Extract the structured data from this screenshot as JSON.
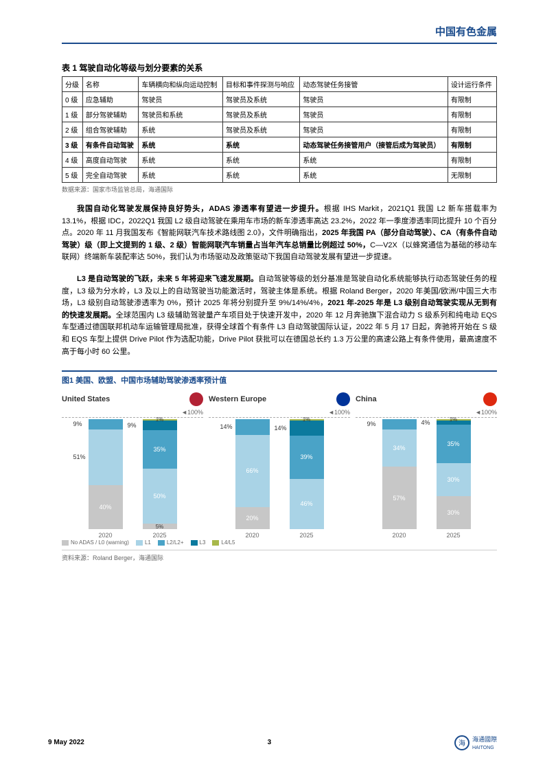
{
  "brand_header": "中国有色金属",
  "table1": {
    "title": "表 1  驾驶自动化等级与划分要素的关系",
    "headers": [
      "分级",
      "名称",
      "车辆横向和纵向运动控制",
      "目标和事件探测与响应",
      "动态驾驶任务接管",
      "设计运行条件"
    ],
    "rows": [
      [
        "0 级",
        "应急辅助",
        "驾驶员",
        "驾驶员及系统",
        "驾驶员",
        "有限制"
      ],
      [
        "1 级",
        "部分驾驶辅助",
        "驾驶员和系统",
        "驾驶员及系统",
        "驾驶员",
        "有限制"
      ],
      [
        "2 级",
        "组合驾驶辅助",
        "系统",
        "驾驶员及系统",
        "驾驶员",
        "有限制"
      ],
      [
        "3 级",
        "有条件自动驾驶",
        "系统",
        "系统",
        "动态驾驶任务接管用户（接管后成为驾驶员）",
        "有限制"
      ],
      [
        "4 级",
        "高度自动驾驶",
        "系统",
        "系统",
        "系统",
        "有限制"
      ],
      [
        "5 级",
        "完全自动驾驶",
        "系统",
        "系统",
        "系统",
        "无限制"
      ]
    ],
    "bold_row_index": 3,
    "source": "数据来源：国家市场监管总局，海通国际"
  },
  "paragraphs": [
    {
      "bold_lead": "我国自动化驾驶发展保持良好势头，ADAS 渗透率有望进一步提升。",
      "rest": "根据 IHS Markit，2021Q1 我国 L2 新车搭载率为 13.1%，根据 IDC，2022Q1 我国 L2 级自动驾驶在乘用车市场的新车渗透率高达 23.2%，2022 年一季度渗透率同比提升 10 个百分点。2020 年 11 月我国发布《智能网联汽车技术路线图 2.0》，文件明确指出，",
      "bold_mid": "2025 年我国 PA（部分自动驾驶）、CA（有条件自动驾驶）级（即上文提到的 1 级、2 级）智能网联汽车销量占当年汽车总销量比例超过 50%，",
      "tail": "C—V2X（以蜂窝通信为基础的移动车联网）终端新车装配率达 50%，我们认为市场驱动及政策驱动下我国自动驾驶发展有望进一步提速。"
    },
    {
      "bold_lead": "L3 是自动驾驶的飞跃，未来 5 年将迎来飞速发展期。",
      "rest": "自动驾驶等级的划分基准是驾驶自动化系统能够执行动态驾驶任务的程度，L3 级为分水岭，L3 及以上的自动驾驶当功能激活时，驾驶主体是系统。根据 Roland Berger，2020 年美国/欧洲/中国三大市场，L3 级别自动驾驶渗透率为 0%，预计 2025 年将分别提升至 9%/14%/4%，",
      "bold_mid": "2021 年-2025 年是 L3 级别自动驾驶实现从无到有的快速发展期。",
      "tail": "全球范围内 L3 级辅助驾驶量产车项目处于快速开发中，2020 年 12 月奔驰旗下混合动力 S 级系列和纯电动 EQS 车型通过德国联邦机动车运输管理局批准，获得全球首个有条件 L3 自动驾驶国际认证，2022 年 5 月 17 日起，奔驰将开始在 S 级和 EQS 车型上提供 Drive Pilot 作为选配功能，Drive Pilot 获批可以在德国总长约 1.3 万公里的高速公路上有条件使用，最高速度不高于每小时 60 公里。"
    }
  ],
  "chart": {
    "title": "图1  美国、欧盟、中国市场辅助驾驶渗透率预计值",
    "ref_label": "100%",
    "panels": [
      {
        "name": "United States",
        "flag_colors": [
          "#b22234",
          "#ffffff",
          "#3c3b6e"
        ],
        "bars": [
          {
            "year": "2020",
            "segments": [
              {
                "label": "40%",
                "value": 40,
                "color": "#c7c7c7",
                "side": false
              },
              {
                "label": "51%",
                "value": 51,
                "color": "#a9d3e6",
                "side": true
              },
              {
                "label": "9%",
                "value": 9,
                "color": "#4aa3c7",
                "side": true
              }
            ]
          },
          {
            "year": "2025",
            "segments": [
              {
                "label": "5%",
                "value": 5,
                "color": "#c7c7c7",
                "side": false
              },
              {
                "label": "50%",
                "value": 50,
                "color": "#a9d3e6",
                "side": false
              },
              {
                "label": "35%",
                "value": 35,
                "color": "#4aa3c7",
                "side": false
              },
              {
                "label": "9%",
                "value": 9,
                "color": "#0b7a9e",
                "side": true
              },
              {
                "label": "1%",
                "value": 1,
                "color": "#a8b84a",
                "side": false
              }
            ]
          }
        ]
      },
      {
        "name": "Western Europe",
        "flag_colors": [
          "#003399",
          "#ffcc00"
        ],
        "bars": [
          {
            "year": "2020",
            "segments": [
              {
                "label": "20%",
                "value": 20,
                "color": "#c7c7c7",
                "side": false
              },
              {
                "label": "66%",
                "value": 66,
                "color": "#a9d3e6",
                "side": false
              },
              {
                "label": "14%",
                "value": 14,
                "color": "#4aa3c7",
                "side": true
              }
            ]
          },
          {
            "year": "2025",
            "segments": [
              {
                "label": "46%",
                "value": 46,
                "color": "#a9d3e6",
                "side": false
              },
              {
                "label": "39%",
                "value": 39,
                "color": "#4aa3c7",
                "side": false
              },
              {
                "label": "14%",
                "value": 14,
                "color": "#0b7a9e",
                "side": true
              },
              {
                "label": "1%",
                "value": 1,
                "color": "#a8b84a",
                "side": false
              }
            ]
          }
        ]
      },
      {
        "name": "China",
        "flag_colors": [
          "#de2910",
          "#ffde00"
        ],
        "bars": [
          {
            "year": "2020",
            "segments": [
              {
                "label": "57%",
                "value": 57,
                "color": "#c7c7c7",
                "side": false
              },
              {
                "label": "34%",
                "value": 34,
                "color": "#a9d3e6",
                "side": false
              },
              {
                "label": "9%",
                "value": 9,
                "color": "#4aa3c7",
                "side": true
              }
            ]
          },
          {
            "year": "2025",
            "segments": [
              {
                "label": "30%",
                "value": 30,
                "color": "#c7c7c7",
                "side": false
              },
              {
                "label": "30%",
                "value": 30,
                "color": "#a9d3e6",
                "side": false
              },
              {
                "label": "35%",
                "value": 35,
                "color": "#4aa3c7",
                "side": false
              },
              {
                "label": "4%",
                "value": 4,
                "color": "#0b7a9e",
                "side": true
              },
              {
                "label": "1%",
                "value": 1,
                "color": "#a8b84a",
                "side": false
              }
            ]
          }
        ]
      }
    ],
    "legend": [
      {
        "label": "No ADAS / L0 (warning)",
        "color": "#c7c7c7"
      },
      {
        "label": "L1",
        "color": "#a9d3e6"
      },
      {
        "label": "L2/L2+",
        "color": "#4aa3c7"
      },
      {
        "label": "L3",
        "color": "#0b7a9e"
      },
      {
        "label": "L4/L5",
        "color": "#a8b84a"
      }
    ],
    "source": "资料来源：Roland Berger，海通国际"
  },
  "footer": {
    "date": "9 May 2022",
    "page": "3",
    "logo_text": "海通國際",
    "logo_sub": "HAITONG"
  }
}
